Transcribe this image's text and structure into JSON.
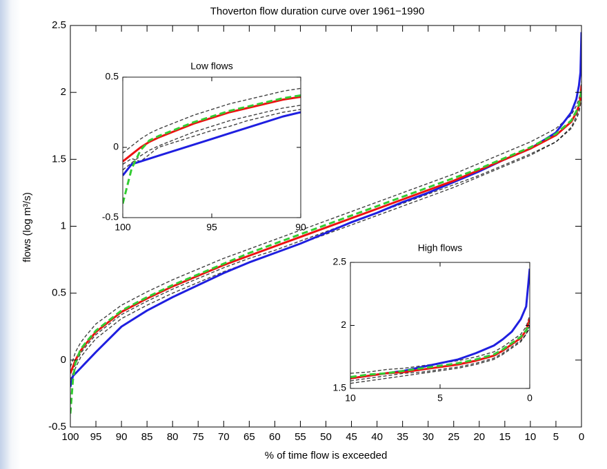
{
  "chart_data": [
    {
      "type": "line",
      "title": "Thoverton  flow duration curve over 1961−1990",
      "x_label": "% of time flow is exceeded",
      "y_label": "flows (log m³/s)",
      "x": [
        100,
        99.5,
        99,
        98,
        97,
        95,
        90,
        85,
        80,
        75,
        70,
        65,
        60,
        55,
        50,
        45,
        40,
        35,
        30,
        25,
        20,
        15,
        10,
        5,
        2,
        1,
        0.5,
        0.2,
        0
      ],
      "xlim": [
        100,
        0
      ],
      "xticks": [
        100,
        95,
        90,
        85,
        80,
        75,
        70,
        65,
        60,
        55,
        50,
        45,
        40,
        35,
        30,
        25,
        20,
        15,
        10,
        5,
        0
      ],
      "ylim": [
        -0.5,
        2.5
      ],
      "yticks": [
        -0.5,
        0,
        0.5,
        1,
        1.5,
        2,
        2.5
      ],
      "grid": false,
      "series": [
        {
          "color": "#000000",
          "linestyle": "dashed",
          "values": [
            -0.05,
            0.0,
            0.06,
            0.13,
            0.18,
            0.27,
            0.41,
            0.51,
            0.6,
            0.68,
            0.76,
            0.83,
            0.9,
            0.97,
            1.04,
            1.11,
            1.18,
            1.25,
            1.32,
            1.39,
            1.47,
            1.55,
            1.63,
            1.73,
            1.83,
            1.9,
            1.95,
            2.0,
            2.08
          ]
        },
        {
          "color": "#000000",
          "linestyle": "dashed",
          "values": [
            -0.15,
            -0.1,
            -0.06,
            0.02,
            0.07,
            0.16,
            0.31,
            0.41,
            0.5,
            0.58,
            0.66,
            0.73,
            0.8,
            0.87,
            0.94,
            1.01,
            1.08,
            1.15,
            1.22,
            1.29,
            1.37,
            1.45,
            1.53,
            1.63,
            1.73,
            1.8,
            1.85,
            1.91,
            2.0
          ]
        },
        {
          "color": "#000000",
          "linestyle": "dashed",
          "values": [
            -0.08,
            -0.07,
            -0.03,
            0.05,
            0.1,
            0.19,
            0.34,
            0.44,
            0.53,
            0.61,
            0.69,
            0.76,
            0.82,
            0.89,
            0.96,
            1.03,
            1.1,
            1.17,
            1.24,
            1.31,
            1.38,
            1.46,
            1.54,
            1.63,
            1.74,
            1.82,
            1.88,
            1.93,
            1.98
          ]
        },
        {
          "color": "#1f1fe0",
          "linestyle": "solid",
          "values": [
            -0.2,
            -0.12,
            -0.1,
            -0.06,
            -0.02,
            0.06,
            0.25,
            0.37,
            0.47,
            0.56,
            0.65,
            0.73,
            0.8,
            0.87,
            0.95,
            1.03,
            1.1,
            1.18,
            1.25,
            1.33,
            1.41,
            1.5,
            1.58,
            1.7,
            1.85,
            1.95,
            2.05,
            2.15,
            2.45
          ]
        },
        {
          "color": "#ee1111",
          "linestyle": "solid",
          "values": [
            -0.1,
            -0.05,
            0.0,
            0.07,
            0.12,
            0.21,
            0.36,
            0.46,
            0.55,
            0.63,
            0.71,
            0.78,
            0.85,
            0.92,
            0.99,
            1.06,
            1.13,
            1.2,
            1.27,
            1.34,
            1.42,
            1.5,
            1.58,
            1.68,
            1.78,
            1.85,
            1.9,
            1.96,
            2.05
          ]
        },
        {
          "color": "#33cc33",
          "linestyle": "dashed",
          "values": [
            -0.4,
            -0.15,
            -0.02,
            0.08,
            0.13,
            0.22,
            0.37,
            0.47,
            0.56,
            0.64,
            0.72,
            0.8,
            0.87,
            0.94,
            1.01,
            1.08,
            1.15,
            1.22,
            1.29,
            1.36,
            1.43,
            1.51,
            1.59,
            1.69,
            1.79,
            1.86,
            1.91,
            1.97,
            2.02
          ]
        }
      ]
    },
    {
      "type": "line",
      "title": "Low flows",
      "x": [
        100,
        99.5,
        99,
        98.5,
        98,
        97,
        96,
        95,
        94,
        93,
        92,
        91,
        90
      ],
      "xlim": [
        100,
        90
      ],
      "xticks": [
        100,
        95,
        90
      ],
      "ylim": [
        -0.5,
        0.5
      ],
      "yticks": [
        -0.5,
        0,
        0.5
      ],
      "grid": false,
      "series": [
        {
          "color": "#000000",
          "linestyle": "dashed",
          "values": [
            -0.04,
            0.01,
            0.06,
            0.1,
            0.13,
            0.18,
            0.23,
            0.27,
            0.31,
            0.34,
            0.37,
            0.4,
            0.42
          ]
        },
        {
          "color": "#000000",
          "linestyle": "dashed",
          "values": [
            -0.16,
            -0.11,
            -0.06,
            -0.02,
            0.01,
            0.06,
            0.11,
            0.15,
            0.19,
            0.22,
            0.25,
            0.28,
            0.3
          ]
        },
        {
          "color": "#000000",
          "linestyle": "dashed",
          "values": [
            -0.12,
            -0.08,
            -0.1,
            -0.05,
            0.0,
            0.04,
            0.08,
            0.12,
            0.15,
            0.19,
            0.22,
            0.25,
            0.27
          ]
        },
        {
          "color": "#1f1fe0",
          "linestyle": "solid",
          "values": [
            -0.2,
            -0.12,
            -0.1,
            -0.08,
            -0.06,
            -0.02,
            0.02,
            0.06,
            0.1,
            0.14,
            0.18,
            0.22,
            0.25
          ]
        },
        {
          "color": "#ee1111",
          "linestyle": "solid",
          "values": [
            -0.1,
            -0.05,
            0.0,
            0.04,
            0.07,
            0.12,
            0.17,
            0.21,
            0.25,
            0.28,
            0.31,
            0.34,
            0.36
          ]
        },
        {
          "color": "#33cc33",
          "linestyle": "dashed",
          "values": [
            -0.4,
            -0.15,
            -0.02,
            0.05,
            0.08,
            0.13,
            0.18,
            0.22,
            0.26,
            0.29,
            0.32,
            0.35,
            0.37
          ]
        }
      ]
    },
    {
      "type": "line",
      "title": "High flows",
      "x": [
        10,
        9,
        8,
        7,
        6,
        5,
        4,
        3,
        2,
        1.5,
        1,
        0.5,
        0.2,
        0
      ],
      "xlim": [
        10,
        0
      ],
      "xticks": [
        10,
        5,
        0
      ],
      "ylim": [
        1.5,
        2.5
      ],
      "yticks": [
        1.5,
        2,
        2.5
      ],
      "grid": false,
      "series": [
        {
          "color": "#000000",
          "linestyle": "dashed",
          "values": [
            1.62,
            1.63,
            1.65,
            1.66,
            1.68,
            1.7,
            1.72,
            1.75,
            1.79,
            1.83,
            1.88,
            1.93,
            1.99,
            2.08
          ]
        },
        {
          "color": "#000000",
          "linestyle": "dashed",
          "values": [
            1.54,
            1.56,
            1.58,
            1.6,
            1.62,
            1.64,
            1.66,
            1.69,
            1.73,
            1.77,
            1.82,
            1.87,
            1.93,
            2.0
          ]
        },
        {
          "color": "#000000",
          "linestyle": "dashed",
          "values": [
            1.56,
            1.58,
            1.6,
            1.62,
            1.63,
            1.65,
            1.67,
            1.7,
            1.74,
            1.78,
            1.83,
            1.88,
            1.93,
            1.98
          ]
        },
        {
          "color": "#1f1fe0",
          "linestyle": "solid",
          "values": [
            1.58,
            1.6,
            1.62,
            1.64,
            1.67,
            1.7,
            1.73,
            1.78,
            1.84,
            1.89,
            1.95,
            2.05,
            2.15,
            2.45
          ]
        },
        {
          "color": "#ee1111",
          "linestyle": "solid",
          "values": [
            1.58,
            1.6,
            1.62,
            1.63,
            1.65,
            1.67,
            1.69,
            1.72,
            1.76,
            1.8,
            1.85,
            1.9,
            1.96,
            2.05
          ]
        },
        {
          "color": "#33cc33",
          "linestyle": "dashed",
          "values": [
            1.59,
            1.61,
            1.62,
            1.64,
            1.66,
            1.68,
            1.7,
            1.73,
            1.77,
            1.81,
            1.86,
            1.91,
            1.96,
            2.02
          ]
        }
      ]
    }
  ]
}
